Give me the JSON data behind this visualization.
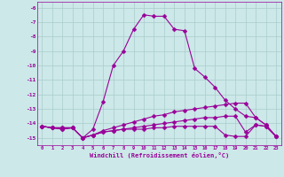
{
  "x": [
    0,
    1,
    2,
    3,
    4,
    5,
    6,
    7,
    8,
    9,
    10,
    11,
    12,
    13,
    14,
    15,
    16,
    17,
    18,
    19,
    20,
    21,
    22,
    23
  ],
  "line1": [
    -14.2,
    -14.3,
    -14.3,
    -14.3,
    -15.0,
    -14.4,
    -12.5,
    -10.0,
    -9.0,
    -7.5,
    -6.5,
    -6.6,
    -6.6,
    -7.5,
    -7.6,
    -10.2,
    -10.8,
    -11.5,
    -12.4,
    -13.0,
    -13.5,
    -13.6,
    -14.1,
    -14.9
  ],
  "line2": [
    -14.2,
    -14.3,
    -14.3,
    -14.3,
    -15.0,
    -14.8,
    -14.5,
    -14.3,
    -14.1,
    -13.9,
    -13.7,
    -13.5,
    -13.4,
    -13.2,
    -13.1,
    -13.0,
    -12.9,
    -12.8,
    -12.7,
    -12.6,
    -12.6,
    -13.6,
    -14.1,
    -14.9
  ],
  "line3": [
    -14.2,
    -14.3,
    -14.4,
    -14.3,
    -15.0,
    -14.8,
    -14.6,
    -14.5,
    -14.4,
    -14.3,
    -14.2,
    -14.1,
    -14.0,
    -13.9,
    -13.8,
    -13.7,
    -13.6,
    -13.6,
    -13.5,
    -13.5,
    -14.6,
    -14.1,
    -14.2,
    -14.9
  ],
  "line4": [
    -14.2,
    -14.3,
    -14.4,
    -14.3,
    -15.0,
    -14.8,
    -14.6,
    -14.5,
    -14.4,
    -14.4,
    -14.4,
    -14.3,
    -14.3,
    -14.2,
    -14.2,
    -14.2,
    -14.2,
    -14.2,
    -14.8,
    -14.9,
    -14.9,
    -14.1,
    -14.2,
    -14.9
  ],
  "bg_color": "#cce8e8",
  "line_color": "#990099",
  "grid_color": "#aacccc",
  "xlabel": "Windchill (Refroidissement éolien,°C)",
  "ylim": [
    -15.5,
    -5.6
  ],
  "xlim": [
    -0.5,
    23.5
  ],
  "yticks": [
    -6,
    -7,
    -8,
    -9,
    -10,
    -11,
    -12,
    -13,
    -14,
    -15
  ]
}
